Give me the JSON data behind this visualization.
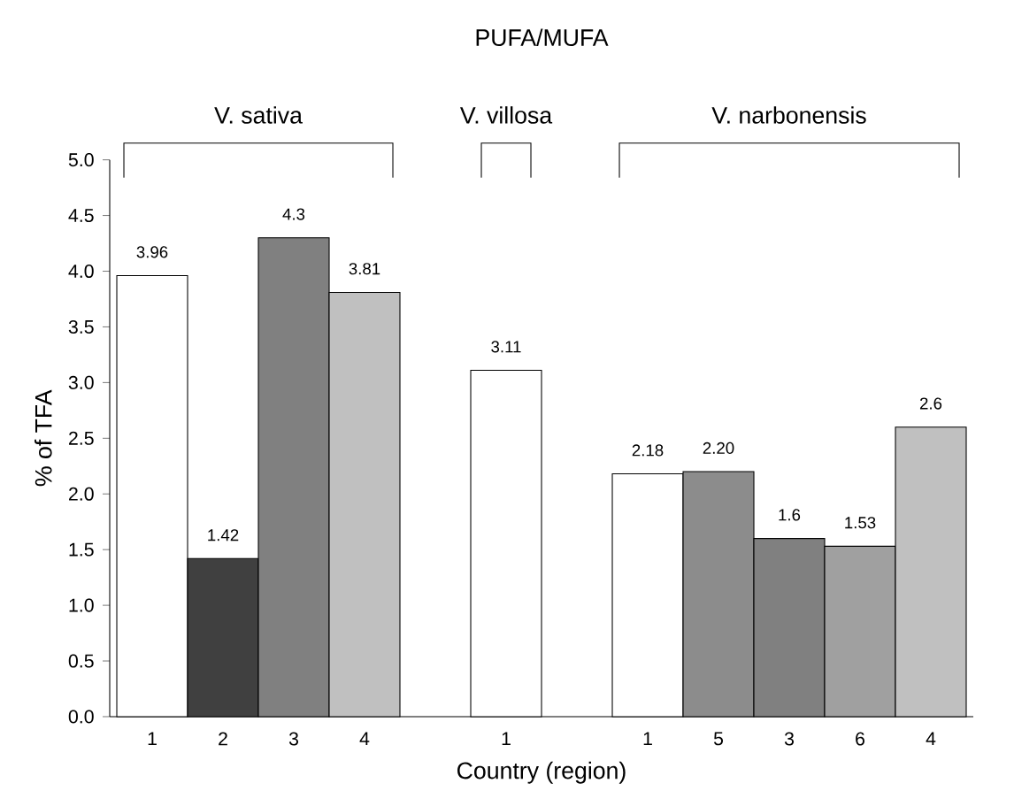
{
  "chart_data": {
    "type": "bar",
    "title": "PUFA/MUFA",
    "xlabel": "Country (region)",
    "ylabel": "% of TFA",
    "categories": [
      "1",
      "2",
      "3",
      "4",
      null,
      "1",
      null,
      "1",
      "5",
      "3",
      "6",
      "4"
    ],
    "values": [
      3.96,
      1.42,
      4.3,
      3.81,
      null,
      3.11,
      null,
      2.18,
      2.2,
      1.6,
      1.53,
      2.6
    ],
    "colors": [
      "#ffffff",
      "#404040",
      "#808080",
      "#c0c0c0",
      null,
      "#ffffff",
      null,
      "#ffffff",
      "#8c8c8c",
      "#808080",
      "#a0a0a0",
      "#c0c0c0"
    ],
    "value_labels": [
      "3.96",
      "1.42",
      "4.3",
      "3.81",
      null,
      "3.11",
      null,
      "2.18",
      "2.20",
      "1.6",
      "1.53",
      "2.6"
    ],
    "annotations": [
      "V.  sativa",
      "V.  villosa",
      "V.  narbonensis"
    ],
    "ylim": [
      0,
      5
    ],
    "yticks": [
      {
        "value": 0,
        "label": "0.0"
      },
      {
        "value": 0.5,
        "label": "0.5"
      },
      {
        "value": 1,
        "label": "1.0"
      },
      {
        "value": 1.5,
        "label": "1.5"
      },
      {
        "value": 2,
        "label": "2.0"
      },
      {
        "value": 2.5,
        "label": "2.5"
      },
      {
        "value": 3,
        "label": "3.0"
      },
      {
        "value": 3.5,
        "label": "3.5"
      },
      {
        "value": 4,
        "label": "4.0"
      },
      {
        "value": 4.5,
        "label": "4.5"
      },
      {
        "value": 5,
        "label": "5.0"
      }
    ],
    "grid": false
  }
}
